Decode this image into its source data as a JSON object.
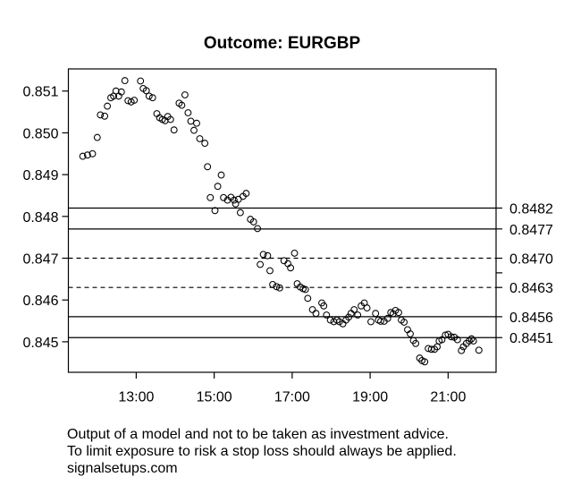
{
  "colors": {
    "background": "#ffffff",
    "foreground": "#000000"
  },
  "footer": {
    "lines": [
      "Output of a model and not to be taken as investment advice.",
      "To limit exposure to risk a stop loss should always be applied.",
      "signalsetups.com"
    ]
  },
  "chart_data": {
    "type": "scatter",
    "title": "Outcome: EURGBP",
    "xlabel": "",
    "ylabel": "",
    "marker": "open-circle",
    "grid": false,
    "legend": "none",
    "xlim_hours": [
      11.26,
      22.23
    ],
    "ylim": [
      0.84427,
      0.85153
    ],
    "x_ticks": [
      {
        "value": 13,
        "label": "13:00"
      },
      {
        "value": 15,
        "label": "15:00"
      },
      {
        "value": 17,
        "label": "17:00"
      },
      {
        "value": 19,
        "label": "19:00"
      },
      {
        "value": 21,
        "label": "21:00"
      }
    ],
    "y_ticks": [
      {
        "value": 0.845,
        "label": "0.845"
      },
      {
        "value": 0.846,
        "label": "0.846"
      },
      {
        "value": 0.847,
        "label": "0.847"
      },
      {
        "value": 0.848,
        "label": "0.848"
      },
      {
        "value": 0.849,
        "label": "0.849"
      },
      {
        "value": 0.85,
        "label": "0.850"
      },
      {
        "value": 0.851,
        "label": "0.851"
      }
    ],
    "levels": [
      {
        "value": 0.8482,
        "label": "0.8482",
        "style": "solid"
      },
      {
        "value": 0.8477,
        "label": "0.8477",
        "style": "solid"
      },
      {
        "value": 0.847,
        "label": "0.8470",
        "style": "dashed"
      },
      {
        "value": 0.84665,
        "label": "",
        "style": "tick-only"
      },
      {
        "value": 0.8463,
        "label": "0.8463",
        "style": "dashed"
      },
      {
        "value": 0.8456,
        "label": "0.8456",
        "style": "solid"
      },
      {
        "value": 0.8451,
        "label": "0.8451",
        "style": "solid"
      }
    ],
    "points": [
      [
        11.63,
        0.84944
      ],
      [
        11.75,
        0.84947
      ],
      [
        11.88,
        0.8495
      ],
      [
        12.0,
        0.84989
      ],
      [
        12.08,
        0.85043
      ],
      [
        12.19,
        0.8504
      ],
      [
        12.26,
        0.85064
      ],
      [
        12.35,
        0.85084
      ],
      [
        12.42,
        0.85088
      ],
      [
        12.48,
        0.851
      ],
      [
        12.55,
        0.85088
      ],
      [
        12.62,
        0.85098
      ],
      [
        12.71,
        0.85125
      ],
      [
        12.79,
        0.85077
      ],
      [
        12.87,
        0.85074
      ],
      [
        12.95,
        0.85078
      ],
      [
        13.11,
        0.85124
      ],
      [
        13.18,
        0.85106
      ],
      [
        13.26,
        0.85101
      ],
      [
        13.33,
        0.85088
      ],
      [
        13.42,
        0.85084
      ],
      [
        13.53,
        0.85046
      ],
      [
        13.6,
        0.85036
      ],
      [
        13.67,
        0.85032
      ],
      [
        13.74,
        0.85029
      ],
      [
        13.81,
        0.85039
      ],
      [
        13.88,
        0.85032
      ],
      [
        13.97,
        0.85007
      ],
      [
        14.1,
        0.85071
      ],
      [
        14.17,
        0.85066
      ],
      [
        14.25,
        0.85091
      ],
      [
        14.33,
        0.85048
      ],
      [
        14.4,
        0.85028
      ],
      [
        14.48,
        0.85006
      ],
      [
        14.55,
        0.85023
      ],
      [
        14.63,
        0.84986
      ],
      [
        14.76,
        0.84975
      ],
      [
        14.83,
        0.84919
      ],
      [
        14.9,
        0.84845
      ],
      [
        15.02,
        0.84814
      ],
      [
        15.09,
        0.84872
      ],
      [
        15.18,
        0.84899
      ],
      [
        15.24,
        0.84845
      ],
      [
        15.34,
        0.84839
      ],
      [
        15.43,
        0.84846
      ],
      [
        15.51,
        0.84839
      ],
      [
        15.55,
        0.8483
      ],
      [
        15.62,
        0.84841
      ],
      [
        15.67,
        0.84809
      ],
      [
        15.74,
        0.84848
      ],
      [
        15.82,
        0.84855
      ],
      [
        15.93,
        0.84793
      ],
      [
        16.01,
        0.84787
      ],
      [
        16.11,
        0.84771
      ],
      [
        16.18,
        0.84685
      ],
      [
        16.26,
        0.84709
      ],
      [
        16.37,
        0.84706
      ],
      [
        16.43,
        0.8467
      ],
      [
        16.5,
        0.84637
      ],
      [
        16.6,
        0.84632
      ],
      [
        16.68,
        0.84629
      ],
      [
        16.79,
        0.84694
      ],
      [
        16.89,
        0.84687
      ],
      [
        16.96,
        0.84677
      ],
      [
        17.06,
        0.84712
      ],
      [
        17.13,
        0.84639
      ],
      [
        17.21,
        0.84631
      ],
      [
        17.28,
        0.84627
      ],
      [
        17.34,
        0.84625
      ],
      [
        17.4,
        0.84604
      ],
      [
        17.52,
        0.84577
      ],
      [
        17.61,
        0.84568
      ],
      [
        17.76,
        0.84593
      ],
      [
        17.81,
        0.84586
      ],
      [
        17.88,
        0.84564
      ],
      [
        17.98,
        0.84552
      ],
      [
        18.07,
        0.84548
      ],
      [
        18.15,
        0.84552
      ],
      [
        18.21,
        0.84548
      ],
      [
        18.3,
        0.84543
      ],
      [
        18.38,
        0.84552
      ],
      [
        18.45,
        0.84559
      ],
      [
        18.51,
        0.84568
      ],
      [
        18.59,
        0.84577
      ],
      [
        18.68,
        0.84564
      ],
      [
        18.77,
        0.84586
      ],
      [
        18.85,
        0.84593
      ],
      [
        18.92,
        0.84581
      ],
      [
        19.02,
        0.84548
      ],
      [
        19.14,
        0.84568
      ],
      [
        19.21,
        0.84552
      ],
      [
        19.27,
        0.84549
      ],
      [
        19.36,
        0.84549
      ],
      [
        19.45,
        0.84556
      ],
      [
        19.53,
        0.8457
      ],
      [
        19.59,
        0.84567
      ],
      [
        19.65,
        0.84575
      ],
      [
        19.73,
        0.8457
      ],
      [
        19.8,
        0.84552
      ],
      [
        19.87,
        0.84547
      ],
      [
        19.96,
        0.84529
      ],
      [
        20.03,
        0.84519
      ],
      [
        20.11,
        0.84503
      ],
      [
        20.17,
        0.84496
      ],
      [
        20.27,
        0.84461
      ],
      [
        20.33,
        0.84455
      ],
      [
        20.4,
        0.84452
      ],
      [
        20.49,
        0.84484
      ],
      [
        20.57,
        0.84482
      ],
      [
        20.65,
        0.84482
      ],
      [
        20.72,
        0.84488
      ],
      [
        20.77,
        0.84502
      ],
      [
        20.84,
        0.84505
      ],
      [
        20.93,
        0.84516
      ],
      [
        21.0,
        0.84518
      ],
      [
        21.08,
        0.84512
      ],
      [
        21.16,
        0.84511
      ],
      [
        21.24,
        0.84505
      ],
      [
        21.34,
        0.84479
      ],
      [
        21.39,
        0.84488
      ],
      [
        21.47,
        0.84496
      ],
      [
        21.54,
        0.84502
      ],
      [
        21.6,
        0.84507
      ],
      [
        21.65,
        0.84502
      ],
      [
        21.79,
        0.8448
      ]
    ]
  }
}
